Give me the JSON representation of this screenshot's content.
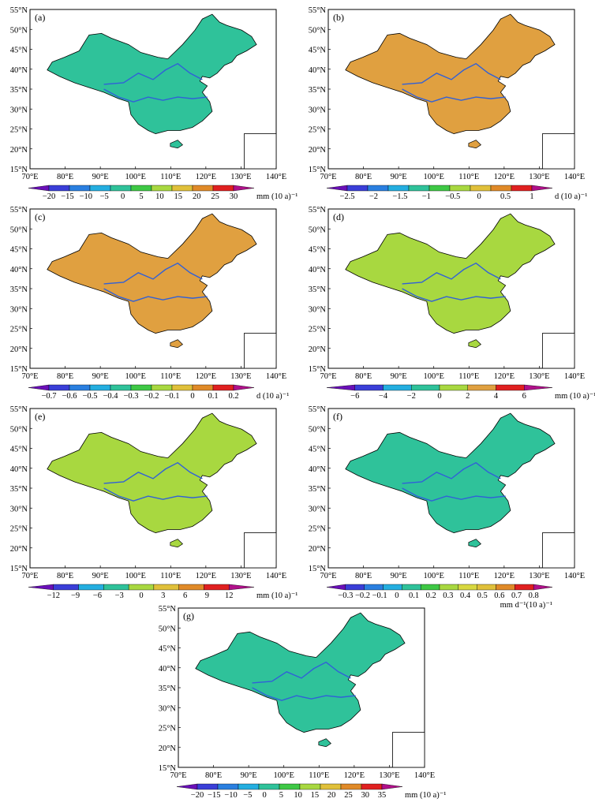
{
  "axes": {
    "lat_labels": [
      "55°N",
      "50°N",
      "45°N",
      "40°N",
      "35°N",
      "30°N",
      "25°N",
      "20°N",
      "15°N"
    ],
    "lon_labels": [
      "70°E",
      "80°E",
      "90°E",
      "100°E",
      "110°E",
      "120°E",
      "130°E",
      "140°E"
    ]
  },
  "panels": [
    {
      "id": "a",
      "label": "(a)",
      "base": "#2fc29a",
      "legend": {
        "colors": [
          "#6a0fb8",
          "#3a3ed8",
          "#2a7fe0",
          "#24aee0",
          "#2fc29a",
          "#3ec845",
          "#a8d840",
          "#e0c03a",
          "#e08a28",
          "#e02020",
          "#b0108a"
        ],
        "ticks": [
          "−20",
          "−15",
          "−10",
          "−5",
          "0",
          "5",
          "10",
          "15",
          "20",
          "25",
          "30"
        ],
        "unit": "mm (10 a)⁻¹",
        "unit2": ""
      }
    },
    {
      "id": "b",
      "label": "(b)",
      "base": "#e0a040",
      "legend": {
        "colors": [
          "#6a0fb8",
          "#3a3ed8",
          "#2a7fe0",
          "#24aee0",
          "#2fc29a",
          "#3ec845",
          "#a8d840",
          "#e0c03a",
          "#e08a28",
          "#e02020",
          "#b0108a"
        ],
        "ticks": [
          "−2.5",
          "−2",
          "−1.5",
          "−1",
          "−0.5",
          "0",
          "0.5",
          "1"
        ],
        "unit": "d (10 a)⁻¹",
        "unit2": ""
      }
    },
    {
      "id": "c",
      "label": "(c)",
      "base": "#e0a040",
      "legend": {
        "colors": [
          "#6a0fb8",
          "#3a3ed8",
          "#2a7fe0",
          "#24aee0",
          "#2fc29a",
          "#3ec845",
          "#a8d840",
          "#e0c03a",
          "#e08a28",
          "#e02020",
          "#b0108a"
        ],
        "ticks": [
          "−0.7",
          "−0.6",
          "−0.5",
          "−0.4",
          "−0.3",
          "−0.2",
          "−0.1",
          "0",
          "0.1",
          "0.2"
        ],
        "unit": "d (10 a)⁻¹",
        "unit2": ""
      }
    },
    {
      "id": "d",
      "label": "(d)",
      "base": "#a8d840",
      "legend": {
        "colors": [
          "#6a0fb8",
          "#3a3ed8",
          "#24aee0",
          "#2fc29a",
          "#a8d840",
          "#e0a040",
          "#e02020",
          "#b0108a"
        ],
        "ticks": [
          "−6",
          "−4",
          "−2",
          "0",
          "2",
          "4",
          "6"
        ],
        "unit": "mm (10 a)⁻¹",
        "unit2": ""
      }
    },
    {
      "id": "e",
      "label": "(e)",
      "base": "#a8d840",
      "legend": {
        "colors": [
          "#6a0fb8",
          "#3a3ed8",
          "#24aee0",
          "#2fc29a",
          "#a8d840",
          "#e0c03a",
          "#e08a28",
          "#e02020",
          "#b0108a"
        ],
        "ticks": [
          "−12",
          "−9",
          "−6",
          "−3",
          "0",
          "3",
          "6",
          "9",
          "12"
        ],
        "unit": "mm (10 a)⁻¹",
        "unit2": ""
      }
    },
    {
      "id": "f",
      "label": "(f)",
      "base": "#2fc29a",
      "legend": {
        "colors": [
          "#6a0fb8",
          "#3a3ed8",
          "#2a7fe0",
          "#24aee0",
          "#2fc29a",
          "#3ec845",
          "#a8d840",
          "#d8d840",
          "#e0c03a",
          "#e08a28",
          "#e02020",
          "#b0108a"
        ],
        "ticks": [
          "−0.3",
          "−0.2",
          "−0.1",
          "0",
          "0.1",
          "0.2",
          "0.3",
          "0.4",
          "0.5",
          "0.6",
          "0.7",
          "0.8"
        ],
        "unit": "",
        "unit2": "mm d⁻¹(10 a)⁻¹"
      }
    },
    {
      "id": "g",
      "label": "(g)",
      "base": "#2fc29a",
      "legend": {
        "colors": [
          "#6a0fb8",
          "#3a3ed8",
          "#2a7fe0",
          "#24aee0",
          "#2fc29a",
          "#3ec845",
          "#a8d840",
          "#e0c03a",
          "#e08a28",
          "#e02020",
          "#b0108a"
        ],
        "ticks": [
          "−20",
          "−15",
          "−10",
          "−5",
          "0",
          "5",
          "10",
          "15",
          "20",
          "25",
          "30",
          "35"
        ],
        "unit": "mm (10 a)⁻¹",
        "unit2": ""
      }
    }
  ]
}
